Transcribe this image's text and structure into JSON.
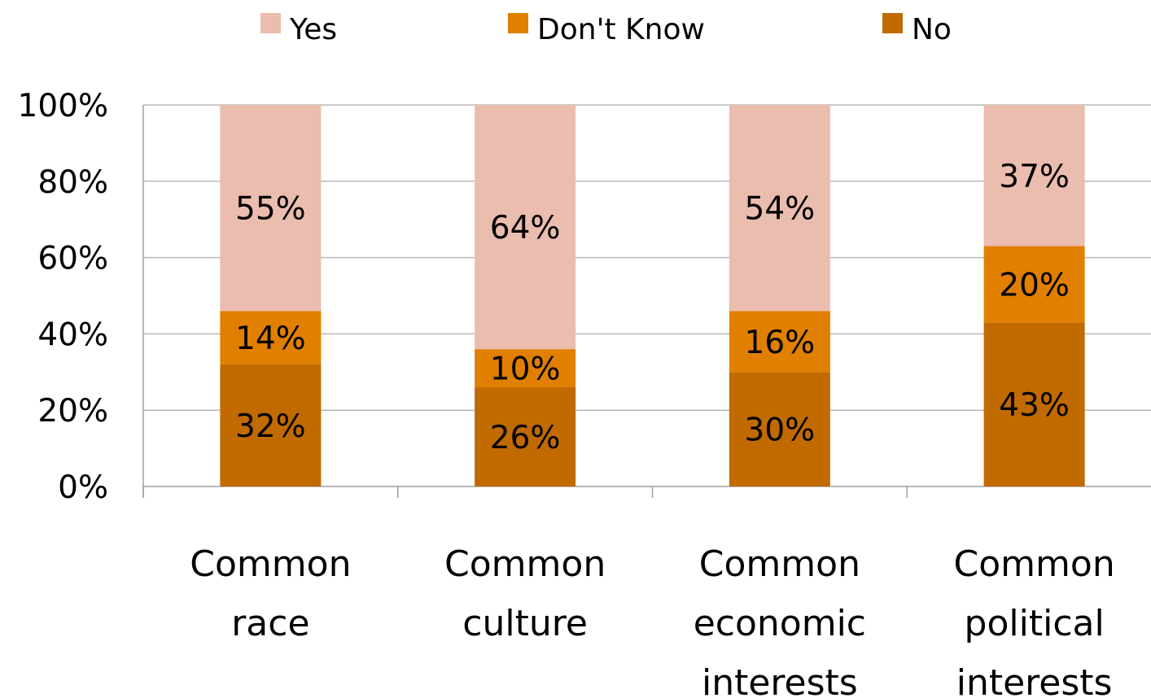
{
  "chart_data": {
    "type": "bar",
    "stacked": true,
    "percent": true,
    "categories": [
      [
        "Common",
        "race"
      ],
      [
        "Common",
        "culture"
      ],
      [
        "Common",
        "economic",
        "interests"
      ],
      [
        "Common",
        "political",
        "interests"
      ]
    ],
    "series": [
      {
        "name": "No",
        "color": "#c06a00",
        "values": [
          32,
          26,
          30,
          43
        ],
        "labels": [
          "32%",
          "26%",
          "30%",
          "43%"
        ]
      },
      {
        "name": "Don't Know",
        "color": "#e07f00",
        "values": [
          14,
          10,
          16,
          20
        ],
        "labels": [
          "14%",
          "10%",
          "16%",
          "20%"
        ]
      },
      {
        "name": "Yes",
        "color": "#ebbdaf",
        "values": [
          55,
          64,
          54,
          37
        ],
        "labels": [
          "55%",
          "64%",
          "54%",
          "37%"
        ]
      }
    ],
    "legend_order": [
      "Yes",
      "Don't Know",
      "No"
    ],
    "legend_position": "top",
    "ylim": [
      0,
      100
    ],
    "yticks": [
      "0%",
      "20%",
      "40%",
      "60%",
      "80%",
      "100%"
    ],
    "grid": true,
    "title": "",
    "xlabel": "",
    "ylabel": ""
  }
}
